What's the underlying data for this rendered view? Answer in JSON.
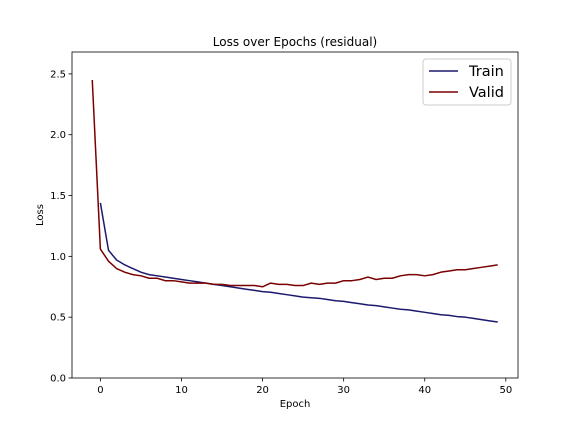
{
  "chart_data": {
    "type": "line",
    "title": "Loss over Epochs (residual)",
    "xlabel": "Epoch",
    "ylabel": "Loss",
    "xlim": [
      -3.5,
      51.5
    ],
    "ylim": [
      0.0,
      2.68
    ],
    "xticks": [
      0,
      10,
      20,
      30,
      40,
      50
    ],
    "yticks": [
      0.0,
      0.5,
      1.0,
      1.5,
      2.0,
      2.5
    ],
    "grid": false,
    "legend_position": "top-right",
    "series": [
      {
        "name": "Train",
        "color": "#1a1a6e",
        "x": [
          0,
          1,
          2,
          3,
          4,
          5,
          6,
          7,
          8,
          9,
          10,
          11,
          12,
          13,
          14,
          15,
          16,
          17,
          18,
          19,
          20,
          21,
          22,
          23,
          24,
          25,
          26,
          27,
          28,
          29,
          30,
          31,
          32,
          33,
          34,
          35,
          36,
          37,
          38,
          39,
          40,
          41,
          42,
          43,
          44,
          45,
          46,
          47,
          48,
          49
        ],
        "y": [
          1.44,
          1.05,
          0.97,
          0.93,
          0.9,
          0.87,
          0.85,
          0.84,
          0.83,
          0.82,
          0.81,
          0.8,
          0.79,
          0.78,
          0.77,
          0.76,
          0.75,
          0.74,
          0.73,
          0.72,
          0.71,
          0.705,
          0.695,
          0.685,
          0.675,
          0.665,
          0.66,
          0.655,
          0.645,
          0.635,
          0.63,
          0.62,
          0.61,
          0.6,
          0.595,
          0.585,
          0.575,
          0.565,
          0.56,
          0.55,
          0.54,
          0.53,
          0.52,
          0.515,
          0.505,
          0.5,
          0.49,
          0.48,
          0.47,
          0.46
        ]
      },
      {
        "name": "Valid",
        "color": "#7a0000",
        "x": [
          -1,
          0,
          1,
          2,
          3,
          4,
          5,
          6,
          7,
          8,
          9,
          10,
          11,
          12,
          13,
          14,
          15,
          16,
          17,
          18,
          19,
          20,
          21,
          22,
          23,
          24,
          25,
          26,
          27,
          28,
          29,
          30,
          31,
          32,
          33,
          34,
          35,
          36,
          37,
          38,
          39,
          40,
          41,
          42,
          43,
          44,
          45,
          46,
          47,
          48,
          49
        ],
        "y": [
          2.45,
          1.06,
          0.96,
          0.9,
          0.87,
          0.85,
          0.84,
          0.82,
          0.82,
          0.8,
          0.8,
          0.79,
          0.78,
          0.78,
          0.78,
          0.77,
          0.77,
          0.76,
          0.76,
          0.76,
          0.76,
          0.75,
          0.78,
          0.77,
          0.77,
          0.76,
          0.76,
          0.78,
          0.77,
          0.78,
          0.78,
          0.8,
          0.8,
          0.81,
          0.83,
          0.81,
          0.82,
          0.82,
          0.84,
          0.85,
          0.85,
          0.84,
          0.85,
          0.87,
          0.88,
          0.89,
          0.89,
          0.9,
          0.91,
          0.92,
          0.93
        ]
      }
    ]
  }
}
